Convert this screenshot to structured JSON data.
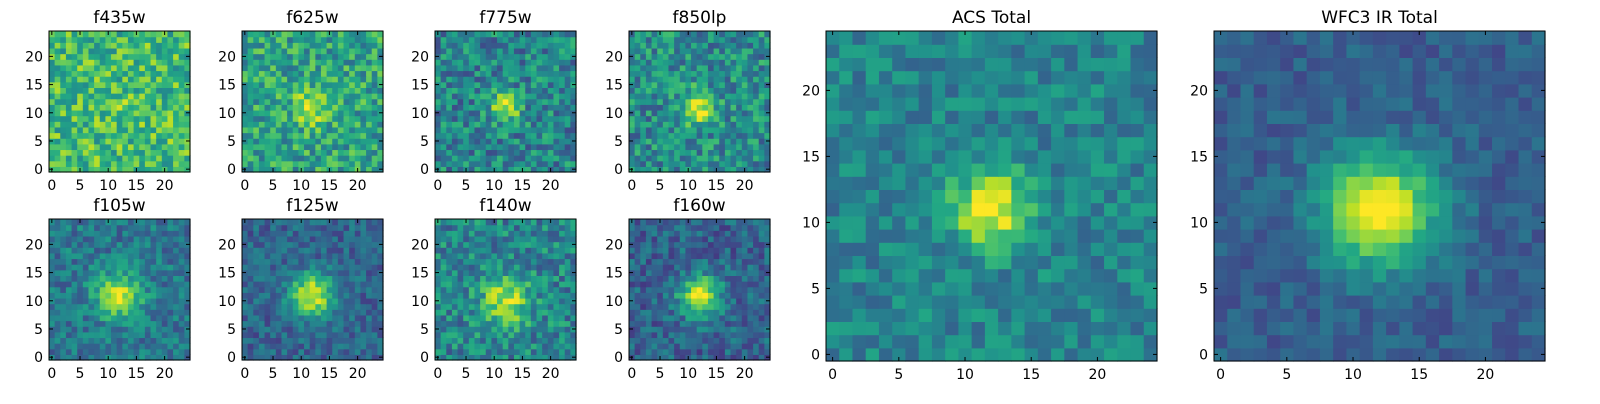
{
  "figure": {
    "colormap": "viridis",
    "grid_size": [
      25,
      25
    ]
  },
  "chart_data": [
    {
      "type": "heatmap",
      "title": "f435w",
      "peak": [
        12,
        11
      ],
      "sigma": 3.0,
      "amplitude": 0.05,
      "baseline": 0.68,
      "noise": 0.22,
      "seed": 11,
      "x_ticks": [
        0,
        5,
        10,
        15,
        20
      ],
      "y_ticks": [
        0,
        5,
        10,
        15,
        20
      ],
      "xlim": [
        0,
        24
      ],
      "ylim": [
        0,
        24
      ]
    },
    {
      "type": "heatmap",
      "title": "f625w",
      "peak": [
        12,
        11
      ],
      "sigma": 2.2,
      "amplitude": 0.35,
      "baseline": 0.58,
      "noise": 0.22,
      "seed": 23,
      "x_ticks": [
        0,
        5,
        10,
        15,
        20
      ],
      "y_ticks": [
        0,
        5,
        10,
        15,
        20
      ],
      "xlim": [
        0,
        24
      ],
      "ylim": [
        0,
        24
      ]
    },
    {
      "type": "heatmap",
      "title": "f775w",
      "peak": [
        12,
        11
      ],
      "sigma": 1.8,
      "amplitude": 0.5,
      "baseline": 0.45,
      "noise": 0.22,
      "seed": 37,
      "x_ticks": [
        0,
        5,
        10,
        15,
        20
      ],
      "y_ticks": [
        0,
        5,
        10,
        15,
        20
      ],
      "xlim": [
        0,
        24
      ],
      "ylim": [
        0,
        24
      ]
    },
    {
      "type": "heatmap",
      "title": "f850lp",
      "peak": [
        12,
        11
      ],
      "sigma": 2.0,
      "amplitude": 0.5,
      "baseline": 0.48,
      "noise": 0.22,
      "seed": 41,
      "x_ticks": [
        0,
        5,
        10,
        15,
        20
      ],
      "y_ticks": [
        0,
        5,
        10,
        15,
        20
      ],
      "xlim": [
        0,
        24
      ],
      "ylim": [
        0,
        24
      ]
    },
    {
      "type": "heatmap",
      "title": "ACS Total",
      "peak": [
        12,
        11
      ],
      "sigma": 2.0,
      "amplitude": 0.55,
      "baseline": 0.45,
      "noise": 0.14,
      "seed": 53,
      "x_ticks": [
        0,
        5,
        10,
        15,
        20
      ],
      "y_ticks": [
        0,
        5,
        10,
        15,
        20
      ],
      "xlim": [
        0,
        24
      ],
      "ylim": [
        0,
        24
      ]
    },
    {
      "type": "heatmap",
      "title": "WFC3 IR Total",
      "peak": [
        12,
        11
      ],
      "sigma": 3.0,
      "amplitude": 0.72,
      "baseline": 0.3,
      "noise": 0.09,
      "seed": 67,
      "x_ticks": [
        0,
        5,
        10,
        15,
        20
      ],
      "y_ticks": [
        0,
        5,
        10,
        15,
        20
      ],
      "xlim": [
        0,
        24
      ],
      "ylim": [
        0,
        24
      ]
    },
    {
      "type": "heatmap",
      "title": "f105w",
      "peak": [
        12,
        11
      ],
      "sigma": 2.8,
      "amplitude": 0.5,
      "baseline": 0.4,
      "noise": 0.16,
      "seed": 71,
      "x_ticks": [
        0,
        5,
        10,
        15,
        20
      ],
      "y_ticks": [
        0,
        5,
        10,
        15,
        20
      ],
      "xlim": [
        0,
        24
      ],
      "ylim": [
        0,
        24
      ]
    },
    {
      "type": "heatmap",
      "title": "f125w",
      "peak": [
        12,
        11
      ],
      "sigma": 2.8,
      "amplitude": 0.62,
      "baseline": 0.32,
      "noise": 0.14,
      "seed": 83,
      "x_ticks": [
        0,
        5,
        10,
        15,
        20
      ],
      "y_ticks": [
        0,
        5,
        10,
        15,
        20
      ],
      "xlim": [
        0,
        24
      ],
      "ylim": [
        0,
        24
      ]
    },
    {
      "type": "heatmap",
      "title": "f140w",
      "peak": [
        12,
        10
      ],
      "sigma": 3.0,
      "amplitude": 0.45,
      "baseline": 0.45,
      "noise": 0.2,
      "seed": 97,
      "x_ticks": [
        0,
        5,
        10,
        15,
        20
      ],
      "y_ticks": [
        0,
        5,
        10,
        15,
        20
      ],
      "xlim": [
        0,
        24
      ],
      "ylim": [
        0,
        24
      ]
    },
    {
      "type": "heatmap",
      "title": "f160w",
      "peak": [
        12,
        11
      ],
      "sigma": 2.6,
      "amplitude": 0.58,
      "baseline": 0.32,
      "noise": 0.16,
      "seed": 101,
      "x_ticks": [
        0,
        5,
        10,
        15,
        20
      ],
      "y_ticks": [
        0,
        5,
        10,
        15,
        20
      ],
      "xlim": [
        0,
        24
      ],
      "ylim": [
        0,
        24
      ]
    }
  ]
}
